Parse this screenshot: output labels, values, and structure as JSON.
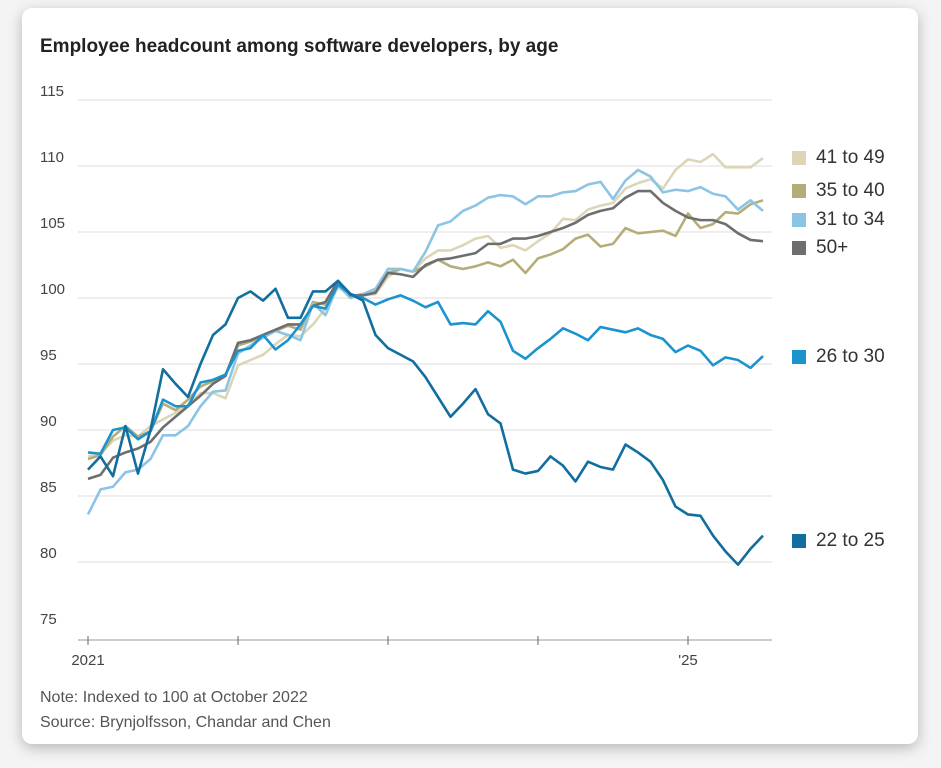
{
  "chart_data": {
    "type": "line",
    "title": "Employee headcount among software developers, by age",
    "notes": [
      "Note: Indexed to 100 at October 2022",
      "Source: Brynjolfsson, Chandar and Chen"
    ],
    "categories": [
      "2021",
      null,
      null,
      null,
      null,
      null,
      null,
      null,
      null,
      null,
      null,
      null,
      null,
      null,
      null,
      null,
      null,
      null,
      null,
      null,
      null,
      null,
      null,
      null,
      null,
      null,
      null,
      null,
      null,
      null,
      null,
      null,
      null,
      null,
      null,
      null,
      null,
      null,
      null,
      null,
      null,
      null,
      null,
      null,
      null,
      null,
      null,
      null,
      "'25",
      null,
      null,
      null,
      null,
      null,
      null
    ],
    "ylim": [
      75,
      115
    ],
    "yticks": [
      75,
      80,
      85,
      90,
      95,
      100,
      105,
      110,
      115
    ],
    "grid": true,
    "series": [
      {
        "name": "41 to 49",
        "color": "#dcd6b8",
        "values": [
          88.0,
          88.2,
          89.2,
          89.6,
          89.5,
          90.3,
          90.8,
          91.3,
          91.9,
          92.8,
          92.8,
          92.4,
          94.9,
          95.3,
          95.7,
          96.5,
          97.2,
          97.1,
          98.0,
          99.2,
          100.8,
          100.2,
          100.2,
          100.3,
          101.6,
          102.2,
          102.0,
          103.0,
          103.6,
          103.6,
          104.0,
          104.5,
          104.7,
          103.8,
          104.0,
          103.6,
          104.3,
          104.9,
          106.0,
          105.9,
          106.7,
          107.0,
          107.2,
          108.3,
          108.7,
          109.0,
          108.3,
          109.7,
          110.5,
          110.3,
          110.9,
          109.9,
          109.9,
          109.9,
          110.6
        ]
      },
      {
        "name": "35 to 40",
        "color": "#b5ad78",
        "values": [
          87.8,
          88.1,
          89.5,
          90.3,
          89.5,
          89.9,
          92.0,
          91.5,
          92.3,
          93.3,
          93.7,
          94.2,
          96.4,
          96.7,
          97.1,
          97.5,
          97.9,
          97.6,
          99.7,
          99.5,
          101.2,
          100.1,
          100.3,
          100.6,
          101.9,
          102.2,
          102.0,
          102.4,
          102.9,
          102.4,
          102.2,
          102.4,
          102.7,
          102.4,
          102.9,
          101.9,
          103.0,
          103.3,
          103.7,
          104.5,
          104.8,
          103.9,
          104.1,
          105.3,
          104.9,
          105.0,
          105.1,
          104.7,
          106.4,
          105.3,
          105.6,
          106.5,
          106.4,
          107.1,
          107.4
        ]
      },
      {
        "name": "31 to 34",
        "color": "#8cc4e6",
        "values": [
          83.6,
          85.5,
          85.7,
          86.8,
          87.0,
          87.8,
          89.6,
          89.6,
          90.3,
          91.8,
          92.9,
          93.0,
          95.8,
          96.4,
          97.0,
          97.5,
          97.2,
          96.8,
          99.6,
          98.7,
          101.0,
          100.0,
          100.3,
          100.7,
          102.2,
          102.2,
          102.0,
          103.5,
          105.5,
          105.8,
          106.6,
          107.0,
          107.6,
          107.8,
          107.7,
          107.1,
          107.7,
          107.7,
          108.0,
          108.1,
          108.6,
          108.8,
          107.5,
          108.9,
          109.7,
          109.2,
          108.0,
          108.2,
          108.1,
          108.4,
          107.9,
          107.7,
          106.7,
          107.4,
          106.6
        ]
      },
      {
        "name": "50+",
        "color": "#6e6e6e",
        "values": [
          86.3,
          86.6,
          87.9,
          88.3,
          88.6,
          89.1,
          90.2,
          91.0,
          91.8,
          92.6,
          93.5,
          94.1,
          96.6,
          96.8,
          97.2,
          97.6,
          98.0,
          98.0,
          99.4,
          99.7,
          101.3,
          100.2,
          100.2,
          100.4,
          101.9,
          101.8,
          101.6,
          102.5,
          102.9,
          103.0,
          103.2,
          103.4,
          104.1,
          104.1,
          104.5,
          104.5,
          104.7,
          105.0,
          105.3,
          105.7,
          106.3,
          106.6,
          106.8,
          107.6,
          108.1,
          108.1,
          107.2,
          106.6,
          106.1,
          105.9,
          105.9,
          105.6,
          104.9,
          104.4,
          104.3
        ]
      },
      {
        "name": "26 to 30",
        "color": "#1b93cf",
        "values": [
          88.3,
          88.2,
          90.0,
          90.2,
          89.3,
          89.9,
          92.3,
          91.8,
          91.8,
          93.6,
          93.8,
          94.2,
          96.0,
          96.2,
          97.2,
          96.1,
          96.8,
          98.0,
          99.4,
          99.2,
          101.0,
          100.3,
          100.0,
          99.5,
          99.9,
          100.2,
          99.8,
          99.3,
          99.7,
          98.0,
          98.1,
          98.0,
          99.0,
          98.2,
          96.0,
          95.4,
          96.2,
          96.9,
          97.7,
          97.3,
          96.8,
          97.8,
          97.6,
          97.4,
          97.7,
          97.2,
          96.9,
          95.9,
          96.4,
          96.0,
          94.9,
          95.5,
          95.3,
          94.7,
          95.6
        ]
      },
      {
        "name": "22 to 25",
        "color": "#116e9e",
        "values": [
          87.0,
          88.0,
          86.5,
          90.3,
          86.7,
          90.0,
          94.6,
          93.5,
          92.5,
          95.0,
          97.2,
          98.0,
          100.0,
          100.5,
          99.8,
          100.7,
          98.5,
          98.5,
          100.5,
          100.5,
          101.3,
          100.3,
          99.8,
          97.2,
          96.2,
          95.7,
          95.2,
          94.0,
          92.5,
          91.0,
          92.0,
          93.1,
          91.2,
          90.5,
          87.0,
          86.7,
          86.9,
          88.0,
          87.3,
          86.1,
          87.6,
          87.2,
          87.0,
          88.9,
          88.3,
          87.6,
          86.2,
          84.2,
          83.6,
          83.5,
          82.0,
          80.8,
          79.8,
          81.0,
          82.0
        ]
      }
    ]
  }
}
